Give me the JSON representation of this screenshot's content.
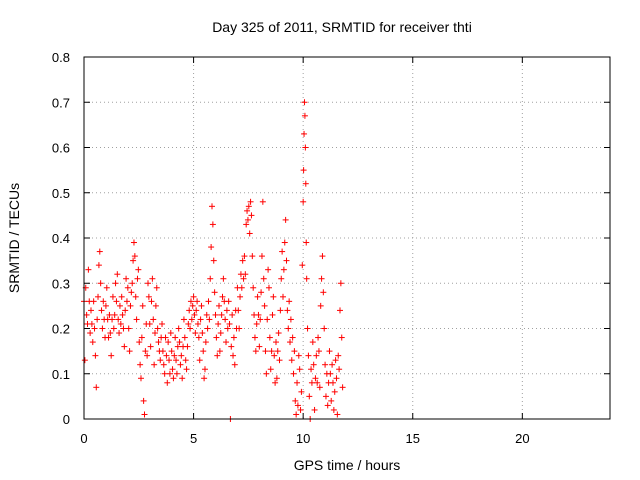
{
  "chart_data": {
    "type": "scatter",
    "title": "Day 325 of 2011, SRMTID for receiver thti",
    "xlabel": "GPS time / hours",
    "ylabel": "SRMTID / TECUs",
    "xlim": [
      0,
      24
    ],
    "ylim": [
      0,
      0.8
    ],
    "x_ticks": [
      "0",
      "5",
      "10",
      "15",
      "20"
    ],
    "y_ticks": [
      "0",
      "0.1",
      "0.2",
      "0.3",
      "0.4",
      "0.5",
      "0.6",
      "0.7",
      "0.8"
    ],
    "grid": true,
    "marker": "+",
    "color": "#ff0000",
    "series": [
      {
        "name": "SRMTID",
        "points": [
          [
            0.0,
            0.26
          ],
          [
            0.04,
            0.13
          ],
          [
            0.08,
            0.29
          ],
          [
            0.12,
            0.23
          ],
          [
            0.16,
            0.21
          ],
          [
            0.2,
            0.33
          ],
          [
            0.24,
            0.26
          ],
          [
            0.28,
            0.19
          ],
          [
            0.32,
            0.24
          ],
          [
            0.36,
            0.21
          ],
          [
            0.4,
            0.17
          ],
          [
            0.44,
            0.26
          ],
          [
            0.48,
            0.2
          ],
          [
            0.52,
            0.14
          ],
          [
            0.56,
            0.07
          ],
          [
            0.6,
            0.22
          ],
          [
            0.64,
            0.27
          ],
          [
            0.68,
            0.34
          ],
          [
            0.72,
            0.37
          ],
          [
            0.76,
            0.3
          ],
          [
            0.8,
            0.24
          ],
          [
            0.84,
            0.2
          ],
          [
            0.88,
            0.26
          ],
          [
            0.92,
            0.22
          ],
          [
            0.96,
            0.18
          ],
          [
            1.0,
            0.25
          ],
          [
            1.04,
            0.29
          ],
          [
            1.08,
            0.22
          ],
          [
            1.12,
            0.18
          ],
          [
            1.16,
            0.23
          ],
          [
            1.2,
            0.19
          ],
          [
            1.24,
            0.14
          ],
          [
            1.28,
            0.22
          ],
          [
            1.32,
            0.27
          ],
          [
            1.36,
            0.2
          ],
          [
            1.4,
            0.23
          ],
          [
            1.44,
            0.3
          ],
          [
            1.48,
            0.26
          ],
          [
            1.52,
            0.32
          ],
          [
            1.56,
            0.22
          ],
          [
            1.6,
            0.19
          ],
          [
            1.64,
            0.25
          ],
          [
            1.68,
            0.21
          ],
          [
            1.72,
            0.27
          ],
          [
            1.76,
            0.23
          ],
          [
            1.8,
            0.2
          ],
          [
            1.84,
            0.16
          ],
          [
            1.88,
            0.24
          ],
          [
            1.92,
            0.31
          ],
          [
            1.96,
            0.26
          ],
          [
            2.0,
            0.29
          ],
          [
            2.04,
            0.2
          ],
          [
            2.08,
            0.15
          ],
          [
            2.12,
            0.25
          ],
          [
            2.16,
            0.28
          ],
          [
            2.2,
            0.3
          ],
          [
            2.24,
            0.35
          ],
          [
            2.28,
            0.39
          ],
          [
            2.32,
            0.36
          ],
          [
            2.36,
            0.27
          ],
          [
            2.4,
            0.22
          ],
          [
            2.44,
            0.31
          ],
          [
            2.48,
            0.33
          ],
          [
            2.52,
            0.17
          ],
          [
            2.56,
            0.12
          ],
          [
            2.6,
            0.09
          ],
          [
            2.64,
            0.18
          ],
          [
            2.68,
            0.25
          ],
          [
            2.72,
            0.04
          ],
          [
            2.76,
            0.01
          ],
          [
            2.8,
            0.15
          ],
          [
            2.84,
            0.21
          ],
          [
            2.88,
            0.14
          ],
          [
            2.92,
            0.3
          ],
          [
            2.96,
            0.27
          ],
          [
            3.0,
            0.21
          ],
          [
            3.04,
            0.16
          ],
          [
            3.08,
            0.26
          ],
          [
            3.12,
            0.31
          ],
          [
            3.16,
            0.22
          ],
          [
            3.2,
            0.12
          ],
          [
            3.24,
            0.19
          ],
          [
            3.28,
            0.25
          ],
          [
            3.32,
            0.29
          ],
          [
            3.36,
            0.2
          ],
          [
            3.4,
            0.17
          ],
          [
            3.44,
            0.15
          ],
          [
            3.48,
            0.13
          ],
          [
            3.52,
            0.18
          ],
          [
            3.56,
            0.21
          ],
          [
            3.6,
            0.15
          ],
          [
            3.64,
            0.12
          ],
          [
            3.68,
            0.1
          ],
          [
            3.72,
            0.18
          ],
          [
            3.76,
            0.14
          ],
          [
            3.8,
            0.08
          ],
          [
            3.84,
            0.17
          ],
          [
            3.88,
            0.13
          ],
          [
            3.92,
            0.1
          ],
          [
            3.96,
            0.19
          ],
          [
            4.0,
            0.15
          ],
          [
            4.04,
            0.11
          ],
          [
            4.08,
            0.09
          ],
          [
            4.12,
            0.14
          ],
          [
            4.16,
            0.18
          ],
          [
            4.2,
            0.13
          ],
          [
            4.24,
            0.1
          ],
          [
            4.28,
            0.16
          ],
          [
            4.32,
            0.2
          ],
          [
            4.36,
            0.17
          ],
          [
            4.4,
            0.12
          ],
          [
            4.44,
            0.14
          ],
          [
            4.48,
            0.09
          ],
          [
            4.52,
            0.16
          ],
          [
            4.56,
            0.22
          ],
          [
            4.6,
            0.18
          ],
          [
            4.64,
            0.13
          ],
          [
            4.68,
            0.11
          ],
          [
            4.72,
            0.16
          ],
          [
            4.76,
            0.21
          ],
          [
            4.8,
            0.24
          ],
          [
            4.84,
            0.2
          ],
          [
            4.88,
            0.26
          ],
          [
            4.92,
            0.22
          ],
          [
            4.96,
            0.25
          ],
          [
            5.0,
            0.27
          ],
          [
            5.04,
            0.23
          ],
          [
            5.08,
            0.19
          ],
          [
            5.12,
            0.24
          ],
          [
            5.16,
            0.26
          ],
          [
            5.2,
            0.21
          ],
          [
            5.24,
            0.18
          ],
          [
            5.28,
            0.13
          ],
          [
            5.32,
            0.22
          ],
          [
            5.36,
            0.25
          ],
          [
            5.4,
            0.19
          ],
          [
            5.44,
            0.15
          ],
          [
            5.48,
            0.09
          ],
          [
            5.52,
            0.11
          ],
          [
            5.56,
            0.17
          ],
          [
            5.6,
            0.23
          ],
          [
            5.64,
            0.2
          ],
          [
            5.68,
            0.26
          ],
          [
            5.72,
            0.22
          ],
          [
            5.76,
            0.31
          ],
          [
            5.8,
            0.38
          ],
          [
            5.84,
            0.47
          ],
          [
            5.88,
            0.43
          ],
          [
            5.92,
            0.35
          ],
          [
            5.96,
            0.28
          ],
          [
            6.0,
            0.23
          ],
          [
            6.04,
            0.18
          ],
          [
            6.08,
            0.14
          ],
          [
            6.12,
            0.21
          ],
          [
            6.16,
            0.25
          ],
          [
            6.2,
            0.15
          ],
          [
            6.24,
            0.19
          ],
          [
            6.28,
            0.23
          ],
          [
            6.32,
            0.27
          ],
          [
            6.36,
            0.31
          ],
          [
            6.4,
            0.26
          ],
          [
            6.44,
            0.22
          ],
          [
            6.48,
            0.17
          ],
          [
            6.52,
            0.24
          ],
          [
            6.56,
            0.2
          ],
          [
            6.6,
            0.26
          ],
          [
            6.64,
            0.21
          ],
          [
            6.68,
            0.0
          ],
          [
            6.72,
            0.16
          ],
          [
            6.76,
            0.23
          ],
          [
            6.8,
            0.14
          ],
          [
            6.84,
            0.18
          ],
          [
            6.88,
            0.12
          ],
          [
            6.92,
            0.24
          ],
          [
            6.96,
            0.2
          ],
          [
            7.0,
            0.29
          ],
          [
            7.04,
            0.24
          ],
          [
            7.08,
            0.2
          ],
          [
            7.12,
            0.27
          ],
          [
            7.16,
            0.32
          ],
          [
            7.2,
            0.29
          ],
          [
            7.24,
            0.35
          ],
          [
            7.28,
            0.31
          ],
          [
            7.32,
            0.36
          ],
          [
            7.36,
            0.32
          ],
          [
            7.4,
            0.43
          ],
          [
            7.44,
            0.46
          ],
          [
            7.48,
            0.44
          ],
          [
            7.52,
            0.47
          ],
          [
            7.56,
            0.41
          ],
          [
            7.6,
            0.48
          ],
          [
            7.64,
            0.45
          ],
          [
            7.68,
            0.36
          ],
          [
            7.72,
            0.29
          ],
          [
            7.76,
            0.23
          ],
          [
            7.8,
            0.18
          ],
          [
            7.84,
            0.15
          ],
          [
            7.88,
            0.21
          ],
          [
            7.92,
            0.27
          ],
          [
            7.96,
            0.23
          ],
          [
            8.0,
            0.16
          ],
          [
            8.04,
            0.22
          ],
          [
            8.08,
            0.28
          ],
          [
            8.12,
            0.36
          ],
          [
            8.16,
            0.48
          ],
          [
            8.2,
            0.31
          ],
          [
            8.24,
            0.25
          ],
          [
            8.28,
            0.15
          ],
          [
            8.32,
            0.1
          ],
          [
            8.36,
            0.22
          ],
          [
            8.4,
            0.33
          ],
          [
            8.44,
            0.29
          ],
          [
            8.48,
            0.18
          ],
          [
            8.52,
            0.11
          ],
          [
            8.56,
            0.15
          ],
          [
            8.6,
            0.23
          ],
          [
            8.64,
            0.27
          ],
          [
            8.68,
            0.14
          ],
          [
            8.72,
            0.08
          ],
          [
            8.76,
            0.17
          ],
          [
            8.8,
            0.09
          ],
          [
            8.84,
            0.15
          ],
          [
            8.88,
            0.19
          ],
          [
            8.92,
            0.13
          ],
          [
            8.96,
            0.24
          ],
          [
            9.0,
            0.31
          ],
          [
            9.04,
            0.37
          ],
          [
            9.08,
            0.27
          ],
          [
            9.12,
            0.33
          ],
          [
            9.16,
            0.39
          ],
          [
            9.2,
            0.44
          ],
          [
            9.24,
            0.35
          ],
          [
            9.28,
            0.24
          ],
          [
            9.32,
            0.2
          ],
          [
            9.36,
            0.26
          ],
          [
            9.4,
            0.17
          ],
          [
            9.44,
            0.22
          ],
          [
            9.48,
            0.13
          ],
          [
            9.52,
            0.18
          ],
          [
            9.56,
            0.1
          ],
          [
            9.6,
            0.15
          ],
          [
            9.64,
            0.04
          ],
          [
            9.68,
            0.01
          ],
          [
            9.72,
            0.08
          ],
          [
            9.76,
            0.03
          ],
          [
            9.8,
            0.14
          ],
          [
            9.84,
            0.11
          ],
          [
            9.88,
            0.02
          ],
          [
            9.92,
            0.06
          ],
          [
            9.96,
            0.34
          ],
          [
            10.0,
            0.48
          ],
          [
            10.02,
            0.55
          ],
          [
            10.04,
            0.63
          ],
          [
            10.06,
            0.7
          ],
          [
            10.08,
            0.67
          ],
          [
            10.1,
            0.6
          ],
          [
            10.12,
            0.52
          ],
          [
            10.14,
            0.39
          ],
          [
            10.16,
            0.31
          ],
          [
            10.2,
            0.2
          ],
          [
            10.24,
            0.14
          ],
          [
            10.28,
            0.05
          ],
          [
            10.32,
            0.0
          ],
          [
            10.36,
            0.11
          ],
          [
            10.4,
            0.08
          ],
          [
            10.44,
            0.17
          ],
          [
            10.48,
            0.12
          ],
          [
            10.52,
            0.02
          ],
          [
            10.56,
            0.09
          ],
          [
            10.6,
            0.14
          ],
          [
            10.64,
            0.08
          ],
          [
            10.68,
            0.18
          ],
          [
            10.72,
            0.15
          ],
          [
            10.76,
            0.07
          ],
          [
            10.8,
            0.25
          ],
          [
            10.84,
            0.31
          ],
          [
            10.88,
            0.36
          ],
          [
            10.92,
            0.28
          ],
          [
            10.96,
            0.2
          ],
          [
            11.0,
            0.12
          ],
          [
            11.04,
            0.05
          ],
          [
            11.08,
            0.1
          ],
          [
            11.12,
            0.03
          ],
          [
            11.16,
            0.08
          ],
          [
            11.2,
            0.15
          ],
          [
            11.24,
            0.1
          ],
          [
            11.28,
            0.04
          ],
          [
            11.32,
            0.12
          ],
          [
            11.36,
            0.08
          ],
          [
            11.4,
            0.02
          ],
          [
            11.44,
            0.06
          ],
          [
            11.48,
            0.13
          ],
          [
            11.52,
            0.09
          ],
          [
            11.56,
            0.01
          ],
          [
            11.6,
            0.14
          ],
          [
            11.64,
            0.11
          ],
          [
            11.68,
            0.24
          ],
          [
            11.72,
            0.3
          ],
          [
            11.76,
            0.18
          ],
          [
            11.8,
            0.07
          ]
        ]
      }
    ]
  }
}
